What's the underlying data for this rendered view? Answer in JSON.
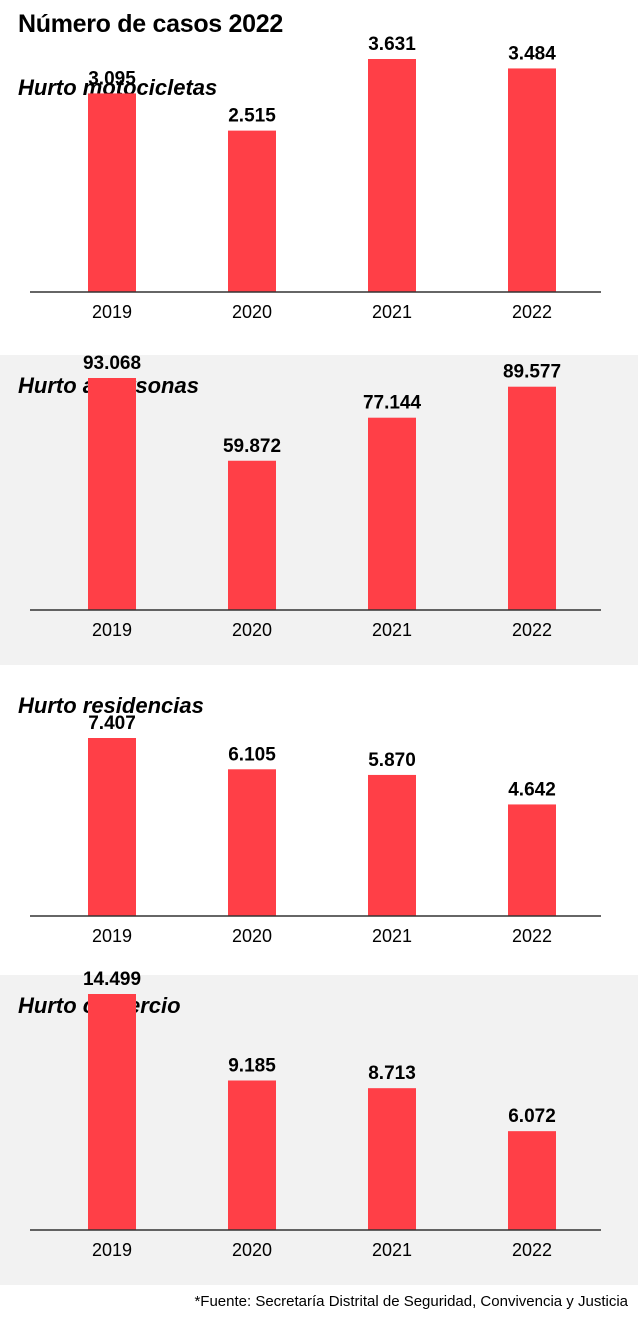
{
  "title": "Número de casos 2022",
  "source": "*Fuente: Secretaría Distrital de Seguridad, Convivencia y Justicia",
  "colors": {
    "bar": "#ff3f47",
    "panel_alt_bg": "#f2f2f2",
    "axis": "#333333"
  },
  "chart_data": [
    {
      "type": "bar",
      "title": "Hurto motocicletas",
      "categories": [
        "2019",
        "2020",
        "2021",
        "2022"
      ],
      "values": [
        3095,
        2515,
        3631,
        3484
      ],
      "value_labels": [
        "3.095",
        "2.515",
        "3.631",
        "3.484"
      ],
      "ylim": [
        0,
        4080
      ],
      "grid": false,
      "shaded_background": false
    },
    {
      "type": "bar",
      "title": "Hurto a personas",
      "categories": [
        "2019",
        "2020",
        "2021",
        "2022"
      ],
      "values": [
        93068,
        59872,
        77144,
        89577
      ],
      "value_labels": [
        "93.068",
        "59.872",
        "77.144",
        "89.577"
      ],
      "ylim": [
        0,
        104500
      ],
      "grid": false,
      "shaded_background": true
    },
    {
      "type": "bar",
      "title": "Hurto residencias",
      "categories": [
        "2019",
        "2020",
        "2021",
        "2022"
      ],
      "values": [
        7407,
        6105,
        5870,
        4642
      ],
      "value_labels": [
        "7.407",
        "6.105",
        "5.870",
        "4.642"
      ],
      "ylim": [
        0,
        11000
      ],
      "grid": false,
      "shaded_background": false
    },
    {
      "type": "bar",
      "title": "Hurto comercio",
      "categories": [
        "2019",
        "2020",
        "2021",
        "2022"
      ],
      "values": [
        14499,
        9185,
        8713,
        6072
      ],
      "value_labels": [
        "14.499",
        "9.185",
        "8.713",
        "6.072"
      ],
      "ylim": [
        0,
        17200
      ],
      "grid": false,
      "shaded_background": true
    }
  ]
}
